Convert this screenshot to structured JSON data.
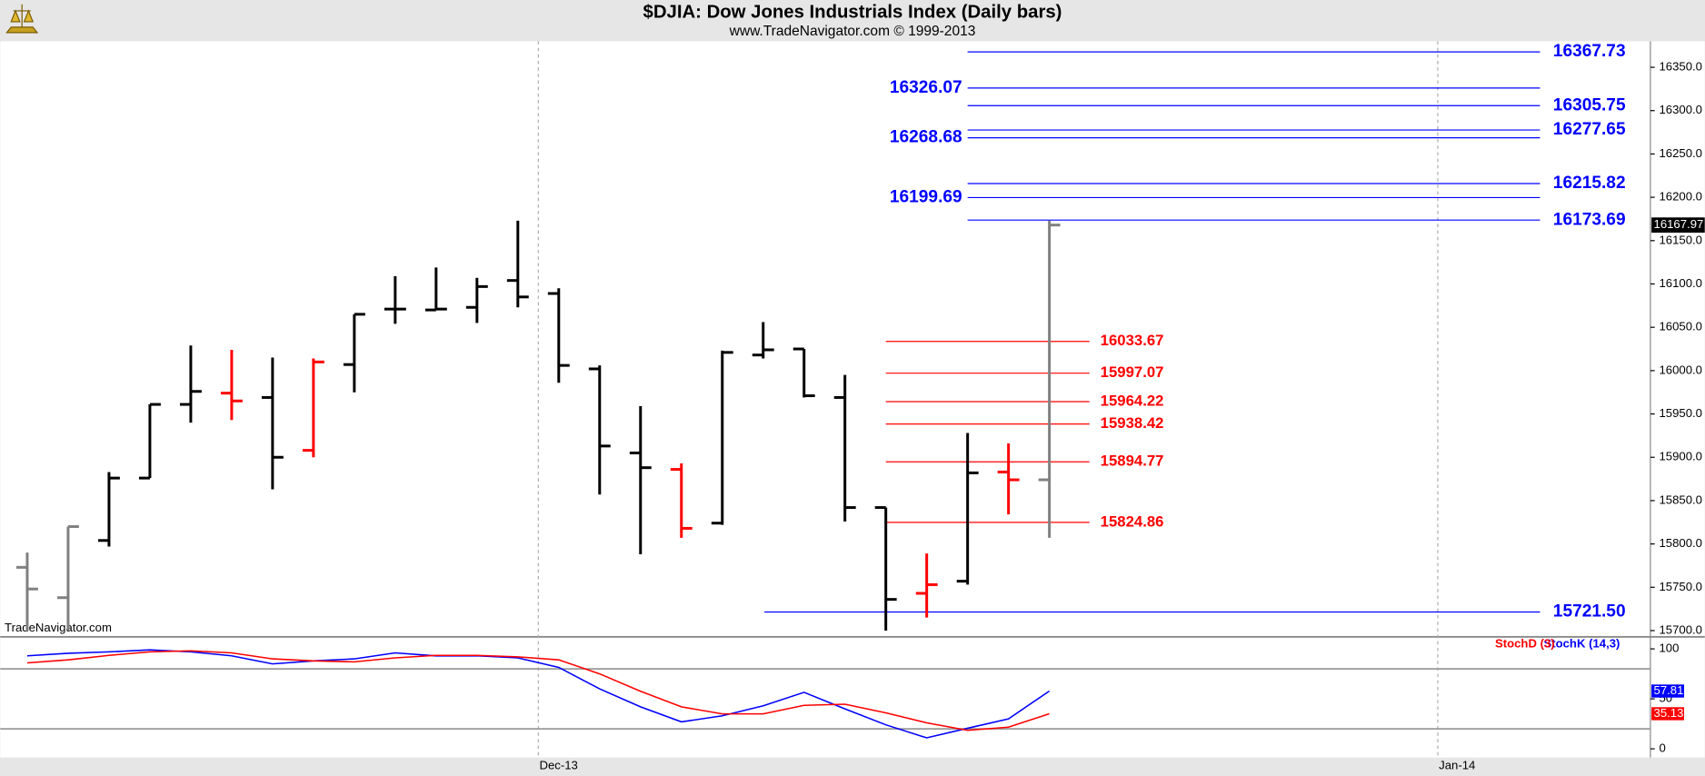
{
  "chart_data": [
    {
      "type": "ohlc",
      "title": "$DJIA:  Dow Jones Industrials Index  (Daily bars)",
      "subtitle": "www.TradeNavigator.com © 1999-2013",
      "watermark": "TradeNavigator.com",
      "open": [
        15773,
        15738,
        15804,
        15876,
        15961,
        15974,
        15969,
        15908,
        16007,
        16071,
        16070,
        16073,
        16104,
        16089,
        16002,
        15905,
        15886,
        15824,
        16018,
        16025,
        15969,
        15842,
        15743,
        15757,
        15883,
        15874
      ],
      "high": [
        15790,
        15820,
        15883,
        15961,
        16029,
        16024,
        16015,
        16014,
        16065,
        16109,
        16119,
        16107,
        16173,
        16095,
        16006,
        15959,
        15893,
        16023,
        16056,
        16025,
        15995,
        15842,
        15789,
        15928,
        15916,
        16173
      ],
      "low": [
        15700,
        15700,
        15797,
        15876,
        15940,
        15943,
        15863,
        15900,
        15975,
        16054,
        16070,
        16055,
        16073,
        15986,
        15857,
        15788,
        15807,
        15822,
        16014,
        15969,
        15826,
        15700,
        15715,
        15753,
        15834,
        15807
      ],
      "close": [
        15748,
        15820,
        15876,
        15961,
        15976,
        15965,
        15900,
        16010,
        16065,
        16071,
        16071,
        16097,
        16085,
        16006,
        15913,
        15888,
        15818,
        16021,
        16024,
        15971,
        15842,
        15736,
        15753,
        15882,
        15874,
        16167.97
      ],
      "colors": [
        "#808080",
        "#808080",
        "#000000",
        "#000000",
        "#000000",
        "#ff0000",
        "#000000",
        "#ff0000",
        "#000000",
        "#000000",
        "#000000",
        "#000000",
        "#000000",
        "#000000",
        "#000000",
        "#000000",
        "#ff0000",
        "#000000",
        "#000000",
        "#000000",
        "#000000",
        "#000000",
        "#ff0000",
        "#000000",
        "#ff0000",
        "#808080"
      ],
      "xlim": [
        -0.66,
        39.7
      ],
      "xticks": [
        {
          "value": 12.5,
          "label": "Dec-13"
        },
        {
          "value": 34.5,
          "label": "Jan-14"
        }
      ],
      "ylim": [
        15694,
        16380
      ],
      "yticks": [
        {
          "value": 15700,
          "label": "15700.0"
        },
        {
          "value": 15750,
          "label": "15750.0"
        },
        {
          "value": 15800,
          "label": "15800.0"
        },
        {
          "value": 15850,
          "label": "15850.0"
        },
        {
          "value": 15900,
          "label": "15900.0"
        },
        {
          "value": 15950,
          "label": "15950.0"
        },
        {
          "value": 16000,
          "label": "16000.0"
        },
        {
          "value": 16050,
          "label": "16050.0"
        },
        {
          "value": 16100,
          "label": "16100.0"
        },
        {
          "value": 16150,
          "label": "16150.0"
        },
        {
          "value": 16200,
          "label": "16200.0"
        },
        {
          "value": 16250,
          "label": "16250.0"
        },
        {
          "value": 16300,
          "label": "16300.0"
        },
        {
          "value": 16350,
          "label": "16350.0"
        }
      ],
      "levels": [
        {
          "value": 16367.73,
          "color": "#0000ff",
          "side": "right",
          "from": 23,
          "to": 37
        },
        {
          "value": 16326.07,
          "color": "#0000ff",
          "side": "left",
          "from": 23,
          "to": 37
        },
        {
          "value": 16305.75,
          "color": "#0000ff",
          "side": "right",
          "from": 23,
          "to": 37
        },
        {
          "value": 16277.65,
          "color": "#0000ff",
          "side": "right",
          "from": 23,
          "to": 37
        },
        {
          "value": 16268.68,
          "color": "#0000ff",
          "side": "left",
          "from": 23,
          "to": 37
        },
        {
          "value": 16215.82,
          "color": "#0000ff",
          "side": "right",
          "from": 23,
          "to": 37
        },
        {
          "value": 16199.69,
          "color": "#0000ff",
          "side": "left",
          "from": 23,
          "to": 37
        },
        {
          "value": 16173.69,
          "color": "#0000ff",
          "side": "right",
          "from": 23,
          "to": 37
        },
        {
          "value": 15721.5,
          "label": "15721.50",
          "color": "#0000ff",
          "side": "right",
          "from": 18.03,
          "to": 37
        },
        {
          "value": 16033.67,
          "color": "#ff0000",
          "side": "right",
          "from": 21,
          "to": 25.98
        },
        {
          "value": 15997.07,
          "color": "#ff0000",
          "side": "right",
          "from": 21,
          "to": 25.98
        },
        {
          "value": 15964.22,
          "color": "#ff0000",
          "side": "right",
          "from": 21,
          "to": 25.98
        },
        {
          "value": 15938.42,
          "color": "#ff0000",
          "side": "right",
          "from": 21,
          "to": 25.98
        },
        {
          "value": 15894.77,
          "color": "#ff0000",
          "side": "right",
          "from": 21,
          "to": 25.98
        },
        {
          "value": 15824.86,
          "color": "#ff0000",
          "side": "right",
          "from": 21,
          "to": 25.98
        }
      ]
    },
    {
      "type": "line",
      "series": [
        {
          "name": "StochK (14,3)",
          "color": "#0000ff",
          "values": [
            93,
            95.6,
            97,
            99,
            97,
            93,
            85,
            88,
            90,
            96,
            93,
            93,
            91,
            81.5,
            60,
            42,
            27,
            33,
            43,
            56.5,
            40,
            24,
            11,
            20.6,
            30,
            57.81
          ]
        },
        {
          "name": "StochD (3)",
          "color": "#ff0000",
          "values": [
            86,
            89,
            93.5,
            97,
            98,
            96,
            90,
            88,
            87,
            91,
            93.5,
            93.5,
            92,
            89,
            75,
            57.6,
            42,
            35,
            35,
            43.5,
            44.6,
            36,
            26,
            18.5,
            21.7,
            35.13
          ]
        }
      ],
      "xlim": [
        -0.66,
        39.7
      ],
      "ylim": [
        -8.7,
        110.9
      ],
      "yticks": [
        0,
        50,
        100
      ],
      "hlines": [
        20,
        80
      ]
    }
  ]
}
